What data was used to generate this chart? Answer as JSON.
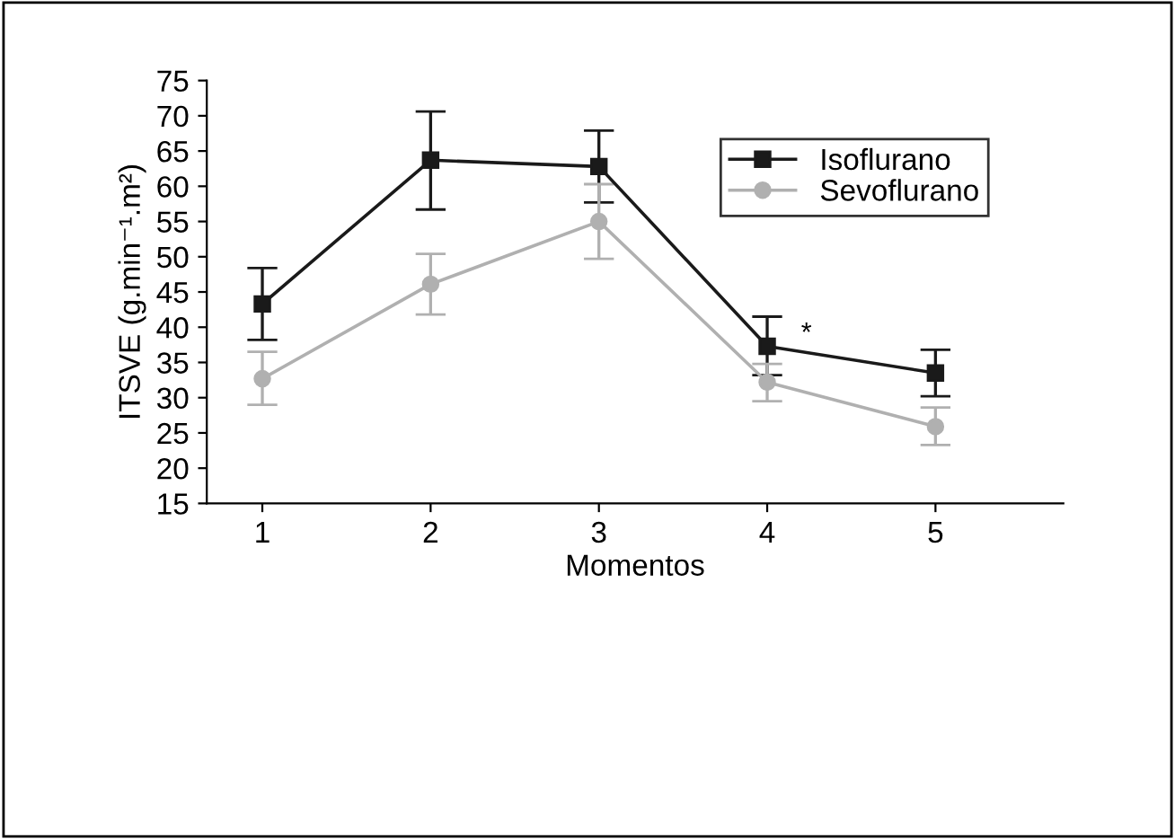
{
  "chart_data": {
    "type": "line",
    "xlabel": "Momentos",
    "ylabel": "ITSVE (g.min⁻¹.m²)",
    "x": [
      1,
      2,
      3,
      4,
      5
    ],
    "xlim": [
      0.67,
      5.76
    ],
    "xticks": [
      1,
      2,
      3,
      4,
      5
    ],
    "ylim": [
      15,
      75
    ],
    "yticks": [
      15,
      20,
      25,
      30,
      35,
      40,
      45,
      50,
      55,
      60,
      65,
      70,
      75
    ],
    "legend": "top right",
    "grid": false,
    "series": [
      {
        "name": "Isoflurano",
        "color": "#1a1a1a",
        "marker": "square",
        "values": [
          43.3,
          63.7,
          62.8,
          37.3,
          33.5
        ],
        "errors": [
          [
            38.2,
            48.4
          ],
          [
            56.7,
            70.6
          ],
          [
            57.7,
            67.9
          ],
          [
            33.2,
            41.5
          ],
          [
            30.2,
            36.8
          ]
        ]
      },
      {
        "name": "Sevoflurano",
        "color": "#b0b0b0",
        "marker": "circle",
        "values": [
          32.7,
          46.1,
          55.0,
          32.2,
          25.9
        ],
        "errors": [
          [
            29.0,
            36.5
          ],
          [
            41.8,
            50.4
          ],
          [
            49.7,
            60.3
          ],
          [
            29.5,
            34.8
          ],
          [
            23.3,
            28.6
          ]
        ]
      }
    ],
    "annotations": [
      "*"
    ]
  }
}
